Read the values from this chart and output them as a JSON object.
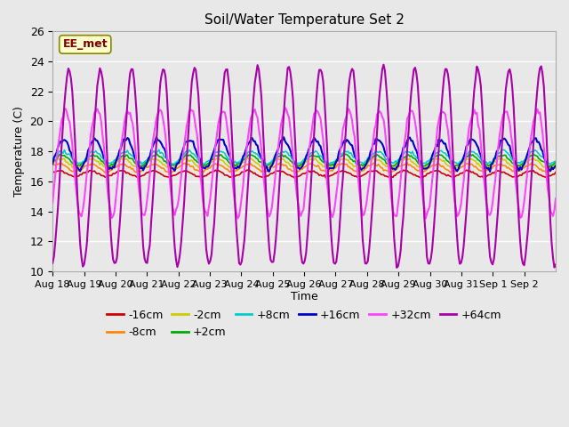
{
  "title": "Soil/Water Temperature Set 2",
  "xlabel": "Time",
  "ylabel": "Temperature (C)",
  "ylim": [
    10,
    26
  ],
  "yticks": [
    10,
    12,
    14,
    16,
    18,
    20,
    22,
    24,
    26
  ],
  "background_color": "#e8e8e8",
  "label_box": "EE_met",
  "series_colors": {
    "-16cm": "#cc0000",
    "-8cm": "#ff8800",
    "-2cm": "#cccc00",
    "+2cm": "#00aa00",
    "+8cm": "#00cccc",
    "+16cm": "#0000cc",
    "+32cm": "#ff44ff",
    "+64cm": "#aa00aa"
  },
  "legend_order": [
    "-16cm",
    "-8cm",
    "-2cm",
    "+2cm",
    "+8cm",
    "+16cm",
    "+32cm",
    "+64cm"
  ],
  "x_tick_labels": [
    "Aug 18",
    "Aug 19",
    "Aug 20",
    "Aug 21",
    "Aug 22",
    "Aug 23",
    "Aug 24",
    "Aug 25",
    "Aug 26",
    "Aug 27",
    "Aug 28",
    "Aug 29",
    "Aug 30",
    "Aug 31",
    "Sep 1",
    "Sep 2"
  ],
  "num_days": 16
}
